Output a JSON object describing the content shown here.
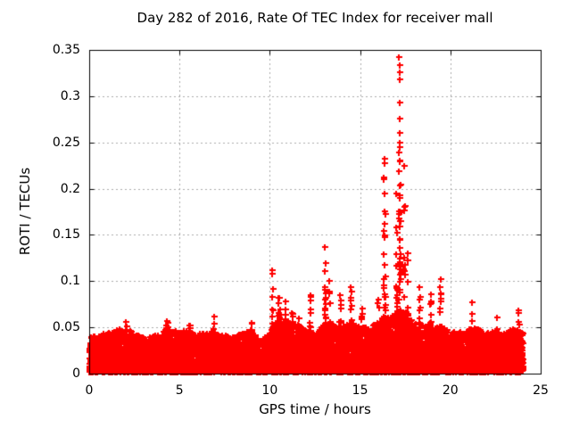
{
  "chart_data": {
    "type": "scatter",
    "title": "Day 282 of 2016, Rate Of TEC Index for receiver mall",
    "xlabel": "GPS time / hours",
    "ylabel": "ROTI / TECUs",
    "xlim": [
      0,
      25
    ],
    "ylim": [
      0,
      0.35
    ],
    "xticks": [
      0,
      5,
      10,
      15,
      20,
      25
    ],
    "xtick_labels": [
      "0",
      "5",
      "10",
      "15",
      "20",
      "25"
    ],
    "yticks": [
      0,
      0.05,
      0.1,
      0.15,
      0.2,
      0.25,
      0.3,
      0.35
    ],
    "ytick_labels": [
      "0",
      "0.05",
      "0.1",
      "0.15",
      "0.2",
      "0.25",
      "0.3",
      "0.35"
    ],
    "grid": true,
    "grid_style": "dotted",
    "grid_color": "#aaaaaa",
    "border_color": "#000000",
    "legend": "none",
    "marker": "plus",
    "marker_color": "#ff0000",
    "series": [
      {
        "name": "ROTI",
        "time_range_hours": [
          0,
          24
        ],
        "point_count": 14000,
        "seed": 42,
        "baseline_band": {
          "min": 0.002,
          "jitter": 0.004,
          "shape_exponent": 3.5
        },
        "envelope": [
          [
            0,
            0.04
          ],
          [
            0.5,
            0.042
          ],
          [
            1,
            0.045
          ],
          [
            1.5,
            0.048
          ],
          [
            2,
            0.05
          ],
          [
            2.5,
            0.044
          ],
          [
            3,
            0.04
          ],
          [
            3.5,
            0.041
          ],
          [
            4,
            0.046
          ],
          [
            4.5,
            0.048
          ],
          [
            5,
            0.045
          ],
          [
            5.5,
            0.048
          ],
          [
            6,
            0.043
          ],
          [
            6.5,
            0.044
          ],
          [
            7,
            0.045
          ],
          [
            7.5,
            0.042
          ],
          [
            8,
            0.04
          ],
          [
            8.5,
            0.044
          ],
          [
            9,
            0.048
          ],
          [
            9.5,
            0.036
          ],
          [
            10,
            0.045
          ],
          [
            10.5,
            0.06
          ],
          [
            11,
            0.058
          ],
          [
            11.5,
            0.055
          ],
          [
            12,
            0.048
          ],
          [
            12.5,
            0.042
          ],
          [
            13,
            0.055
          ],
          [
            13.5,
            0.052
          ],
          [
            14,
            0.05
          ],
          [
            14.5,
            0.055
          ],
          [
            15,
            0.052
          ],
          [
            15.5,
            0.05
          ],
          [
            16,
            0.058
          ],
          [
            16.5,
            0.062
          ],
          [
            17,
            0.068
          ],
          [
            17.5,
            0.068
          ],
          [
            18,
            0.055
          ],
          [
            18.5,
            0.052
          ],
          [
            19,
            0.05
          ],
          [
            19.5,
            0.052
          ],
          [
            20,
            0.045
          ],
          [
            20.5,
            0.046
          ],
          [
            21,
            0.048
          ],
          [
            21.5,
            0.05
          ],
          [
            22,
            0.044
          ],
          [
            22.5,
            0.046
          ],
          [
            23,
            0.044
          ],
          [
            23.5,
            0.05
          ],
          [
            24,
            0.046
          ]
        ],
        "spikes": [
          {
            "t": 2.05,
            "peak": 0.056,
            "width": 0.05,
            "n": 10
          },
          {
            "t": 4.3,
            "peak": 0.057,
            "width": 0.09,
            "n": 26
          },
          {
            "t": 5.55,
            "peak": 0.052,
            "width": 0.05,
            "n": 10
          },
          {
            "t": 6.9,
            "peak": 0.062,
            "width": 0.03,
            "n": 8
          },
          {
            "t": 9.0,
            "peak": 0.055,
            "width": 0.04,
            "n": 8
          },
          {
            "t": 10.15,
            "peak": 0.112,
            "width": 0.04,
            "n": 14
          },
          {
            "t": 10.5,
            "peak": 0.082,
            "width": 0.07,
            "n": 20
          },
          {
            "t": 10.85,
            "peak": 0.078,
            "width": 0.05,
            "n": 14
          },
          {
            "t": 11.2,
            "peak": 0.066,
            "width": 0.06,
            "n": 14
          },
          {
            "t": 11.6,
            "peak": 0.06,
            "width": 0.05,
            "n": 10
          },
          {
            "t": 12.25,
            "peak": 0.085,
            "width": 0.04,
            "n": 12
          },
          {
            "t": 13.05,
            "peak": 0.137,
            "width": 0.05,
            "n": 24
          },
          {
            "t": 13.3,
            "peak": 0.1,
            "width": 0.05,
            "n": 16
          },
          {
            "t": 13.9,
            "peak": 0.085,
            "width": 0.05,
            "n": 12
          },
          {
            "t": 14.5,
            "peak": 0.094,
            "width": 0.04,
            "n": 14
          },
          {
            "t": 15.1,
            "peak": 0.07,
            "width": 0.04,
            "n": 10
          },
          {
            "t": 16.0,
            "peak": 0.08,
            "width": 0.05,
            "n": 12
          },
          {
            "t": 16.35,
            "peak": 0.232,
            "width": 0.06,
            "n": 30
          },
          {
            "t": 17.0,
            "peak": 0.195,
            "width": 0.05,
            "n": 26
          },
          {
            "t": 17.2,
            "peak": 0.25,
            "width": 0.05,
            "n": 60
          },
          {
            "t": 17.45,
            "peak": 0.225,
            "width": 0.05,
            "n": 28
          },
          {
            "t": 17.65,
            "peak": 0.13,
            "width": 0.04,
            "n": 12
          },
          {
            "t": 18.3,
            "peak": 0.094,
            "width": 0.04,
            "n": 12
          },
          {
            "t": 18.9,
            "peak": 0.086,
            "width": 0.05,
            "n": 12
          },
          {
            "t": 19.45,
            "peak": 0.102,
            "width": 0.04,
            "n": 12
          },
          {
            "t": 21.2,
            "peak": 0.077,
            "width": 0.02,
            "n": 4
          },
          {
            "t": 22.6,
            "peak": 0.061,
            "width": 0.02,
            "n": 4
          },
          {
            "t": 23.75,
            "peak": 0.068,
            "width": 0.07,
            "n": 16
          }
        ],
        "peak_points": [
          [
            17.16,
            0.342
          ],
          [
            17.17,
            0.334
          ],
          [
            17.18,
            0.326
          ],
          [
            17.18,
            0.318
          ],
          [
            17.19,
            0.293
          ],
          [
            17.2,
            0.276
          ],
          [
            17.19,
            0.26
          ],
          [
            17.21,
            0.245
          ],
          [
            16.35,
            0.232
          ],
          [
            17.45,
            0.225
          ],
          [
            13.05,
            0.137
          ],
          [
            10.15,
            0.112
          ],
          [
            19.45,
            0.102
          ]
        ]
      }
    ]
  }
}
